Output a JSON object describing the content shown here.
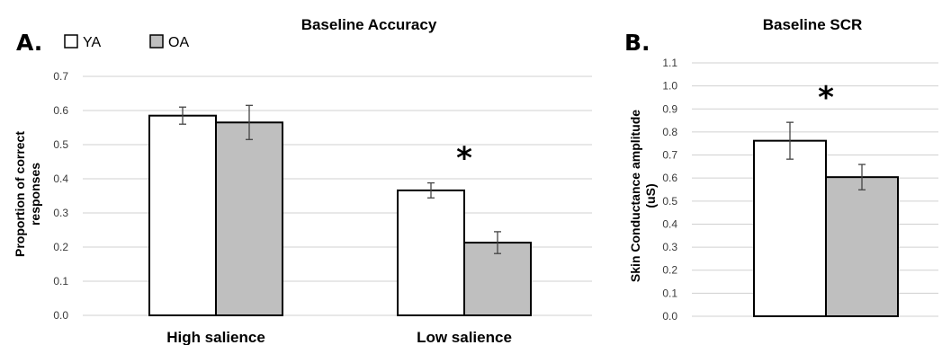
{
  "panel_labels": [
    "A.",
    "B."
  ],
  "legend": [
    {
      "label": "YA",
      "color": "#ffffff"
    },
    {
      "label": "OA",
      "color": "#bfbfbf"
    }
  ],
  "colors": {
    "YA": "#ffffff",
    "OA": "#bfbfbf",
    "outline": "#000000",
    "grid": "#d0d0d0"
  },
  "significance_marker": "*",
  "chart_data": [
    {
      "type": "bar",
      "title": "Baseline Accuracy",
      "ylabel_lines": [
        "Proportion of correct",
        "responses"
      ],
      "xlabel": "",
      "categories": [
        "High salience",
        "Low salience"
      ],
      "series": [
        {
          "name": "YA",
          "values": [
            0.585,
            0.366
          ],
          "errors": [
            0.025,
            0.022
          ]
        },
        {
          "name": "OA",
          "values": [
            0.565,
            0.213
          ],
          "errors": [
            0.05,
            0.032
          ]
        }
      ],
      "ylim": [
        0,
        0.7
      ],
      "yticks": [
        "0.0",
        "0.1",
        "0.2",
        "0.3",
        "0.4",
        "0.5",
        "0.6",
        "0.7"
      ],
      "grid": true,
      "legend_position": "top-left",
      "significant_categories": [
        1
      ]
    },
    {
      "type": "bar",
      "title": "Baseline SCR",
      "ylabel_lines": [
        "Skin Conductance amplitude",
        "(uS)"
      ],
      "xlabel": "",
      "categories": [
        ""
      ],
      "series": [
        {
          "name": "YA",
          "values": [
            0.762
          ],
          "errors": [
            0.08
          ]
        },
        {
          "name": "OA",
          "values": [
            0.604
          ],
          "errors": [
            0.055
          ]
        }
      ],
      "ylim": [
        0,
        1.1
      ],
      "yticks": [
        "0.0",
        "0.1",
        "0.2",
        "0.3",
        "0.4",
        "0.5",
        "0.6",
        "0.7",
        "0.8",
        "0.9",
        "1.0",
        "1.1"
      ],
      "grid": true,
      "significant_categories": [
        0
      ]
    }
  ]
}
